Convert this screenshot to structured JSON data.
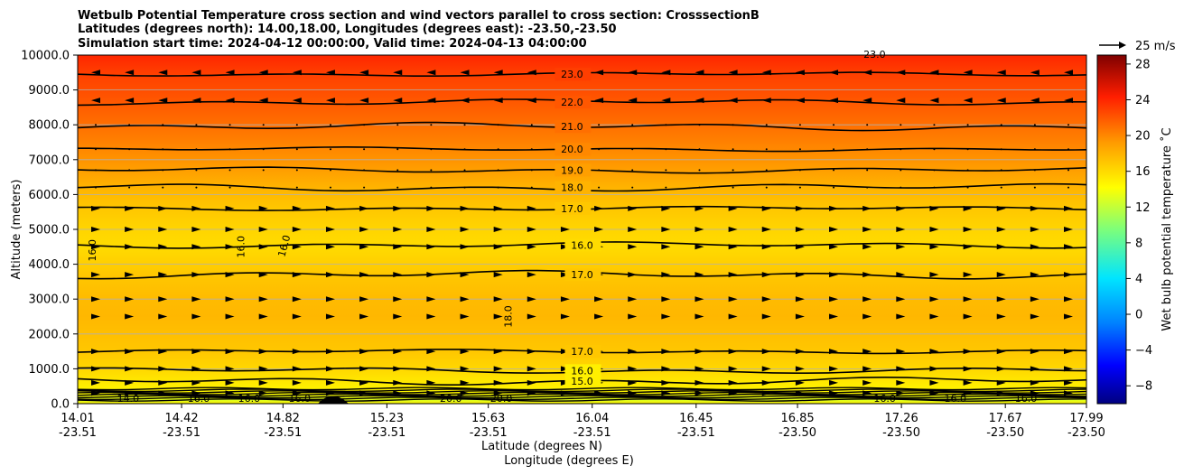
{
  "chart_data": {
    "type": "heatmap",
    "title_lines": [
      "Wetbulb Potential Temperature cross section and wind vectors parallel to cross section: CrosssectionB",
      "Latitudes (degrees north): 14.00,18.00, Longitudes (degrees east): -23.50,-23.50",
      "Simulation start time: 2024-04-12 00:00:00, Valid time: 2024-04-13 04:00:00"
    ],
    "ylabel": "Altitude (meters)",
    "xlabel_lat": "Latitude (degrees N)",
    "xlabel_lon": "Longitude (degrees E)",
    "ylim": [
      0,
      10000
    ],
    "y_ticks": [
      "0.0",
      "1000.0",
      "2000.0",
      "3000.0",
      "4000.0",
      "5000.0",
      "6000.0",
      "7000.0",
      "8000.0",
      "9000.0",
      "10000.0"
    ],
    "x_range": [
      14.01,
      17.99
    ],
    "x_ticks": [
      {
        "lat": "14.01",
        "lon": "-23.51"
      },
      {
        "lat": "14.42",
        "lon": "-23.51"
      },
      {
        "lat": "14.82",
        "lon": "-23.51"
      },
      {
        "lat": "15.23",
        "lon": "-23.51"
      },
      {
        "lat": "15.63",
        "lon": "-23.51"
      },
      {
        "lat": "16.04",
        "lon": "-23.51"
      },
      {
        "lat": "16.45",
        "lon": "-23.51"
      },
      {
        "lat": "16.85",
        "lon": "-23.50"
      },
      {
        "lat": "17.26",
        "lon": "-23.50"
      },
      {
        "lat": "17.67",
        "lon": "-23.50"
      },
      {
        "lat": "17.99",
        "lon": "-23.50"
      }
    ],
    "colorbar": {
      "label": "Wet bulb potential temperature ˚C",
      "range": [
        -10,
        29
      ],
      "ticks": [
        "−8",
        "−4",
        "0",
        "4",
        "8",
        "12",
        "16",
        "20",
        "24",
        "28"
      ]
    },
    "wind_reference": "25 m/s",
    "temperature_profile": [
      {
        "alt": 0,
        "t": 15.0
      },
      {
        "alt": 100,
        "t": 13.0
      },
      {
        "alt": 300,
        "t": 14.5
      },
      {
        "alt": 600,
        "t": 15.3
      },
      {
        "alt": 1000,
        "t": 16.2
      },
      {
        "alt": 1500,
        "t": 17.0
      },
      {
        "alt": 2500,
        "t": 17.8
      },
      {
        "alt": 3000,
        "t": 17.6
      },
      {
        "alt": 3700,
        "t": 17.0
      },
      {
        "alt": 4500,
        "t": 16.0
      },
      {
        "alt": 5000,
        "t": 16.3
      },
      {
        "alt": 5600,
        "t": 17.0
      },
      {
        "alt": 6200,
        "t": 18.0
      },
      {
        "alt": 6700,
        "t": 19.0
      },
      {
        "alt": 7300,
        "t": 20.0
      },
      {
        "alt": 8000,
        "t": 21.0
      },
      {
        "alt": 8700,
        "t": 22.0
      },
      {
        "alt": 9500,
        "t": 23.0
      },
      {
        "alt": 10000,
        "t": 24.0
      }
    ],
    "contours": [
      {
        "label": "23.0",
        "alt": 9450
      },
      {
        "label": "22.0",
        "alt": 8650
      },
      {
        "label": "21.0",
        "alt": 7950
      },
      {
        "label": "20.0",
        "alt": 7300
      },
      {
        "label": "19.0",
        "alt": 6700
      },
      {
        "label": "18.0",
        "alt": 6200
      },
      {
        "label": "17.0",
        "alt": 5600
      },
      {
        "label": "16.0",
        "alt": 4550
      },
      {
        "label": "17.0",
        "alt": 3700
      },
      {
        "label": "17.0",
        "alt": 1500
      },
      {
        "label": "16.0",
        "alt": 950
      },
      {
        "label": "15.0",
        "alt": 650
      }
    ],
    "extra_labels": [
      "16.0",
      "16.0",
      "16.0",
      "18.0",
      "23.0"
    ],
    "surface_labels": [
      "14.0",
      "16.0",
      "16.0",
      "16.0",
      "20.0",
      "20.0",
      "16.0",
      "16.0",
      "16.0"
    ]
  }
}
